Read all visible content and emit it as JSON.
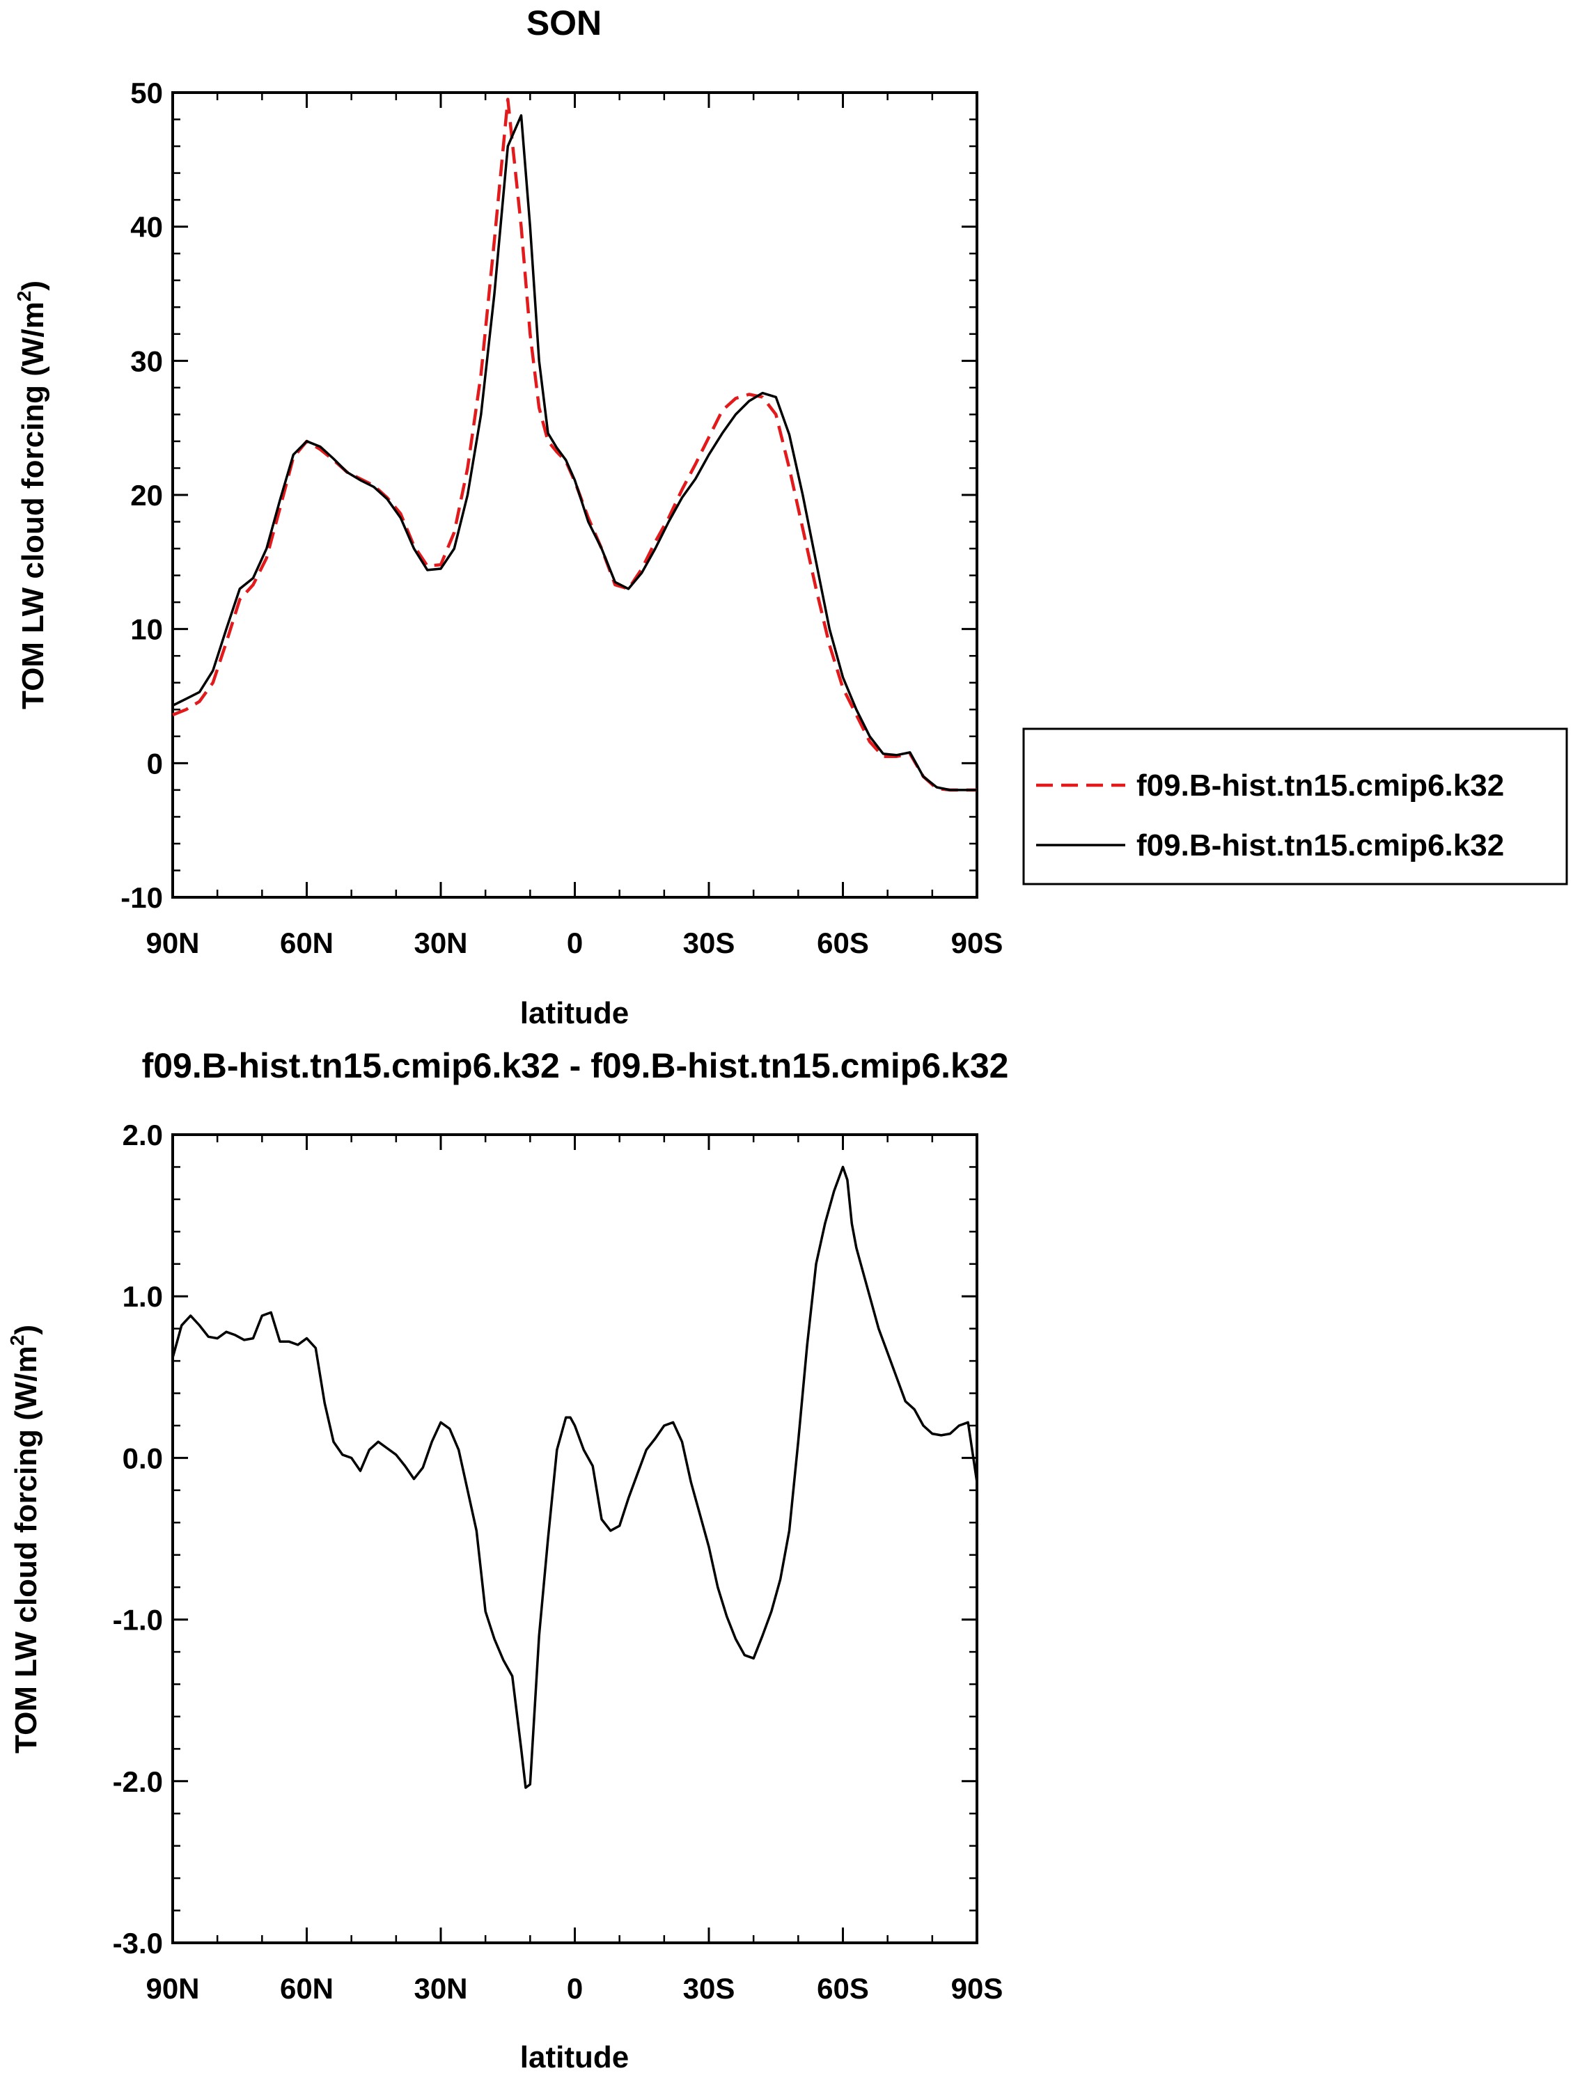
{
  "chart_data": [
    {
      "type": "line",
      "title": "SON",
      "xlabel": "latitude",
      "ylabel": "TOM LW cloud forcing (W/m",
      "ylabel_sup": "2",
      "ylabel_end": ")",
      "xlim": [
        90,
        -90
      ],
      "ylim": [
        -10,
        50
      ],
      "x_ticks": [
        90,
        60,
        30,
        0,
        -30,
        -60,
        -90
      ],
      "x_tick_labels": [
        "90N",
        "60N",
        "30N",
        "0",
        "30S",
        "60S",
        "90S"
      ],
      "y_ticks": [
        -10,
        0,
        10,
        20,
        30,
        40,
        50
      ],
      "y_tick_labels": [
        "-10",
        "0",
        "10",
        "20",
        "30",
        "40",
        "50"
      ],
      "grid": false,
      "legend_position": "right",
      "series": [
        {
          "name": "f09.B-hist.tn15.cmip6.k32",
          "color": "#e31a1c",
          "dash": "dashed",
          "x": [
            90,
            87,
            84,
            81,
            78,
            75,
            72,
            69,
            66,
            63,
            60,
            57,
            54,
            51,
            48,
            45,
            42,
            39,
            36,
            33,
            30,
            27,
            24,
            21,
            18,
            15,
            12,
            10,
            8,
            6,
            4,
            2,
            0,
            -3,
            -6,
            -9,
            -12,
            -15,
            -18,
            -21,
            -24,
            -27,
            -30,
            -33,
            -36,
            -39,
            -42,
            -45,
            -48,
            -51,
            -54,
            -57,
            -60,
            -63,
            -66,
            -69,
            -72,
            -75,
            -78,
            -81,
            -84,
            -87,
            -90
          ],
          "y": [
            3.6,
            4.0,
            4.6,
            6.0,
            9.0,
            12.2,
            13.3,
            15.3,
            19.0,
            22.8,
            24.0,
            23.4,
            22.6,
            21.7,
            21.2,
            20.7,
            19.8,
            18.6,
            16.2,
            14.7,
            14.8,
            17.2,
            22.0,
            29.0,
            39.0,
            49.5,
            40.0,
            32.0,
            26.5,
            24.0,
            23.2,
            22.5,
            21.0,
            18.3,
            16.0,
            13.3,
            13.0,
            14.5,
            16.5,
            18.3,
            20.4,
            22.3,
            24.3,
            26.3,
            27.2,
            27.5,
            27.3,
            26.0,
            22.0,
            17.5,
            13.0,
            8.8,
            5.6,
            3.6,
            1.6,
            0.5,
            0.5,
            0.7,
            -1.0,
            -1.9,
            -2.0,
            -2.0,
            -2.0
          ]
        },
        {
          "name": "f09.B-hist.tn15.cmip6.k32",
          "color": "#000000",
          "dash": "solid",
          "x": [
            90,
            87,
            84,
            81,
            78,
            75,
            72,
            69,
            66,
            63,
            60,
            57,
            54,
            51,
            48,
            45,
            42,
            39,
            36,
            33,
            30,
            27,
            24,
            21,
            18,
            15,
            12,
            10,
            8,
            6,
            4,
            2,
            0,
            -3,
            -6,
            -9,
            -12,
            -15,
            -18,
            -21,
            -24,
            -27,
            -30,
            -33,
            -36,
            -39,
            -42,
            -45,
            -48,
            -51,
            -54,
            -57,
            -60,
            -63,
            -66,
            -69,
            -72,
            -75,
            -78,
            -81,
            -84,
            -87,
            -90
          ],
          "y": [
            4.3,
            4.8,
            5.3,
            6.9,
            10.0,
            13.0,
            13.8,
            16.0,
            19.6,
            23.0,
            24.0,
            23.6,
            22.7,
            21.7,
            21.1,
            20.6,
            19.7,
            18.3,
            16.0,
            14.4,
            14.5,
            16.0,
            20.0,
            26.0,
            35.0,
            46.0,
            48.3,
            40.0,
            30.0,
            24.6,
            23.5,
            22.6,
            21.1,
            18.0,
            16.0,
            13.5,
            13.0,
            14.2,
            16.0,
            18.0,
            19.8,
            21.2,
            23.0,
            24.6,
            26.0,
            27.0,
            27.6,
            27.3,
            24.5,
            20.0,
            15.0,
            10.0,
            6.4,
            4.0,
            2.0,
            0.7,
            0.6,
            0.8,
            -1.0,
            -1.8,
            -2.0,
            -2.0,
            -2.0
          ]
        }
      ]
    },
    {
      "type": "line",
      "title": "f09.B-hist.tn15.cmip6.k32 - f09.B-hist.tn15.cmip6.k32",
      "xlabel": "latitude",
      "ylabel": "TOM LW cloud forcing (W/m",
      "ylabel_sup": "2",
      "ylabel_end": ")",
      "xlim": [
        90,
        -90
      ],
      "ylim": [
        -3,
        2
      ],
      "x_ticks": [
        90,
        60,
        30,
        0,
        -30,
        -60,
        -90
      ],
      "x_tick_labels": [
        "90N",
        "60N",
        "30N",
        "0",
        "30S",
        "60S",
        "90S"
      ],
      "y_ticks": [
        -3,
        -2,
        -1,
        0,
        1,
        2
      ],
      "y_tick_labels": [
        "-3.0",
        "-2.0",
        "-1.0",
        "0.0",
        "1.0",
        "2.0"
      ],
      "grid": false,
      "series": [
        {
          "color": "#000000",
          "dash": "solid",
          "x": [
            90,
            88,
            86,
            84,
            82,
            80,
            78,
            76,
            74,
            72,
            70,
            68,
            66,
            64,
            62,
            60,
            58,
            56,
            54,
            52,
            50,
            48,
            46,
            44,
            42,
            40,
            38,
            36,
            34,
            32,
            30,
            28,
            26,
            24,
            22,
            20,
            18,
            16,
            14,
            12,
            11,
            10,
            8,
            6,
            4,
            2,
            1,
            0,
            -2,
            -4,
            -6,
            -8,
            -10,
            -12,
            -14,
            -16,
            -18,
            -20,
            -22,
            -24,
            -26,
            -28,
            -30,
            -32,
            -34,
            -36,
            -38,
            -40,
            -42,
            -44,
            -46,
            -48,
            -50,
            -52,
            -54,
            -56,
            -58,
            -60,
            -61,
            -62,
            -63,
            -64,
            -66,
            -68,
            -70,
            -72,
            -74,
            -76,
            -78,
            -80,
            -82,
            -84,
            -86,
            -88,
            -90
          ],
          "y": [
            0.62,
            0.82,
            0.88,
            0.82,
            0.75,
            0.74,
            0.78,
            0.76,
            0.73,
            0.74,
            0.88,
            0.9,
            0.72,
            0.72,
            0.7,
            0.74,
            0.68,
            0.34,
            0.1,
            0.02,
            0.0,
            -0.08,
            0.05,
            0.1,
            0.06,
            0.02,
            -0.05,
            -0.13,
            -0.06,
            0.1,
            0.22,
            0.18,
            0.05,
            -0.2,
            -0.45,
            -0.95,
            -1.12,
            -1.25,
            -1.35,
            -1.8,
            -2.04,
            -2.02,
            -1.1,
            -0.5,
            0.05,
            0.25,
            0.25,
            0.2,
            0.05,
            -0.05,
            -0.38,
            -0.45,
            -0.42,
            -0.25,
            -0.1,
            0.05,
            0.12,
            0.2,
            0.22,
            0.1,
            -0.15,
            -0.35,
            -0.55,
            -0.8,
            -0.98,
            -1.12,
            -1.22,
            -1.24,
            -1.1,
            -0.95,
            -0.75,
            -0.45,
            0.1,
            0.7,
            1.2,
            1.45,
            1.65,
            1.8,
            1.72,
            1.45,
            1.3,
            1.2,
            1.0,
            0.8,
            0.65,
            0.5,
            0.35,
            0.3,
            0.2,
            0.15,
            0.14,
            0.15,
            0.2,
            0.22,
            -0.15
          ]
        }
      ]
    }
  ]
}
